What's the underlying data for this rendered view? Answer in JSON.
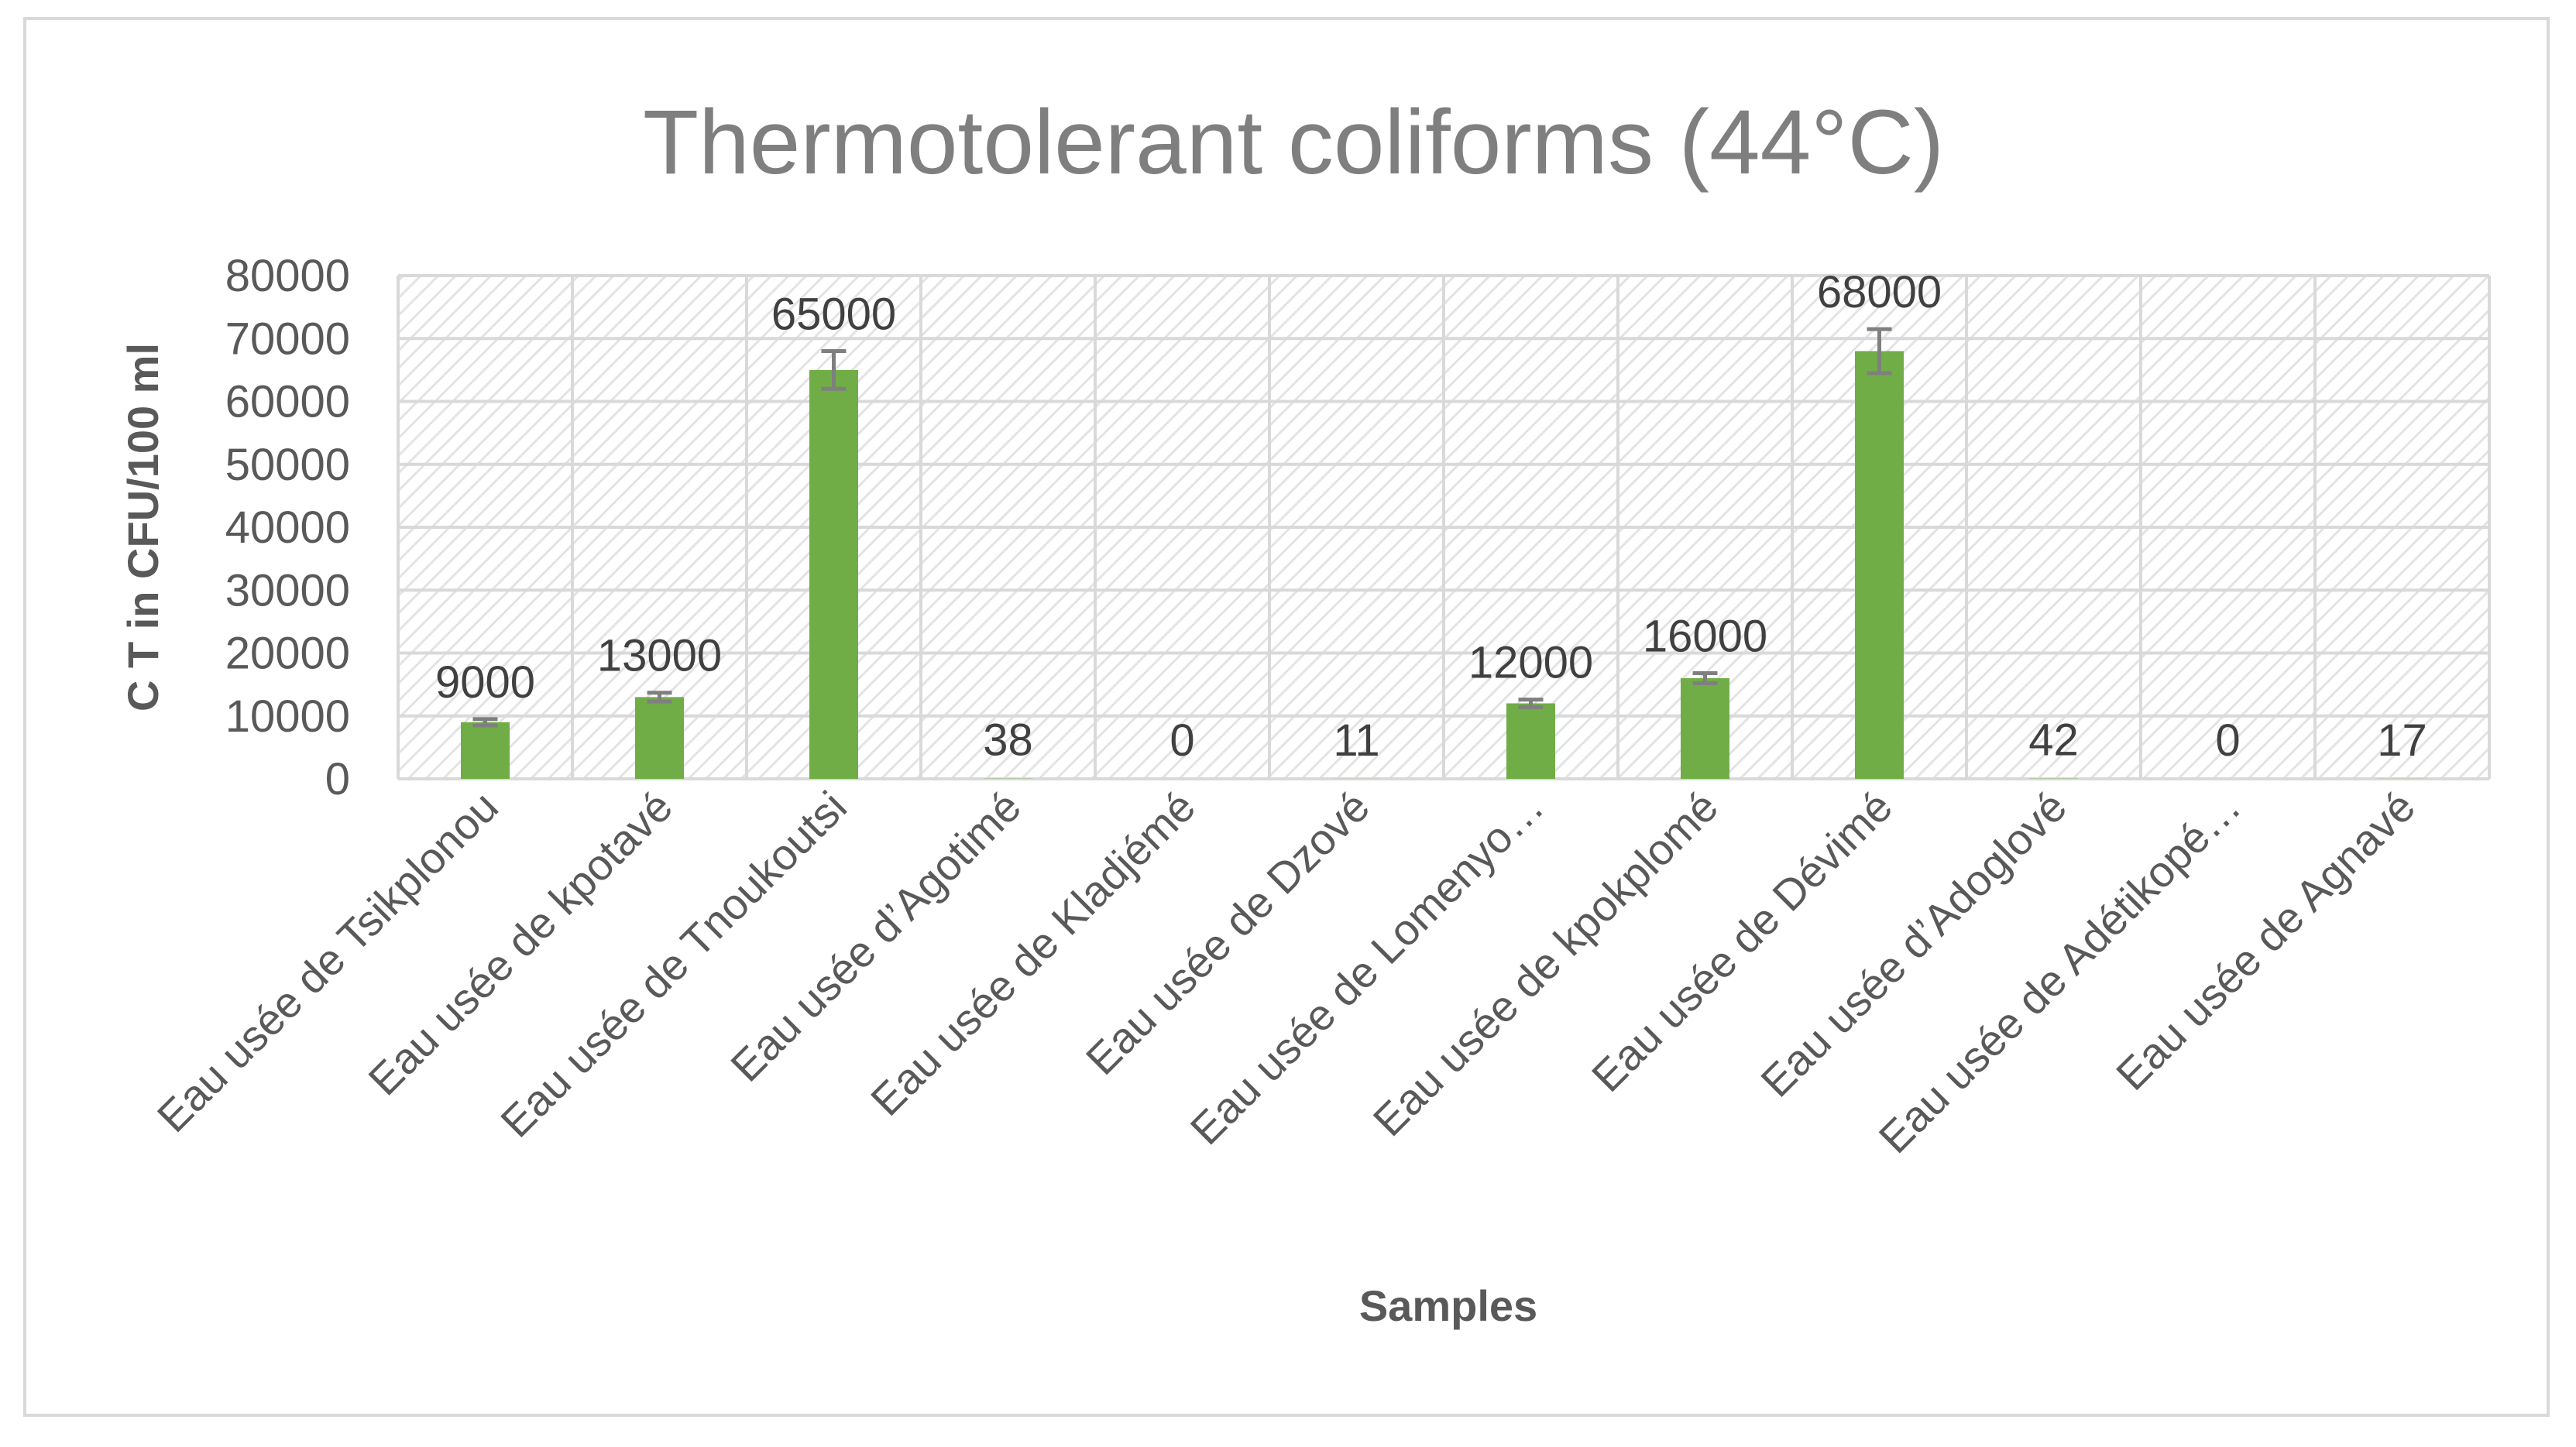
{
  "chart_data": {
    "type": "bar",
    "title": "Thermotolerant coliforms (44°C)",
    "xlabel": "Samples",
    "ylabel": "C T in CFU/100 ml",
    "ylim": [
      0,
      80000
    ],
    "yticks": [
      0,
      10000,
      20000,
      30000,
      40000,
      50000,
      60000,
      70000,
      80000
    ],
    "grid": true,
    "legend": "none",
    "categories": [
      "Eau usée de Tsikplonou",
      "Eau usée de kpotavé",
      "Eau usée de Tnoukoutsi",
      "Eau usée d’Agotimé",
      "Eau usée de Kladjémé",
      "Eau usée de Dzové",
      "Eau usée de Lomenyo…",
      "Eau usée de kpokplomé",
      "Eau usée de Dévimé",
      "Eau usée d’Adoglové",
      "Eau usée de Adétikopé…",
      "Eau usée de Agnavé"
    ],
    "values": [
      9000,
      13000,
      65000,
      38,
      0,
      11,
      12000,
      16000,
      68000,
      42,
      0,
      17
    ],
    "data_labels": [
      "9000",
      "13000",
      "65000",
      "38",
      "0",
      "11",
      "12000",
      "16000",
      "68000",
      "42",
      "0",
      "17"
    ],
    "error_bars": [
      500,
      700,
      3000,
      0,
      0,
      0,
      600,
      800,
      3500,
      0,
      0,
      0
    ],
    "bar_color": "#70ad47",
    "error_bar_color": "#7f7f7f",
    "grid_color": "#d9d9d9"
  }
}
